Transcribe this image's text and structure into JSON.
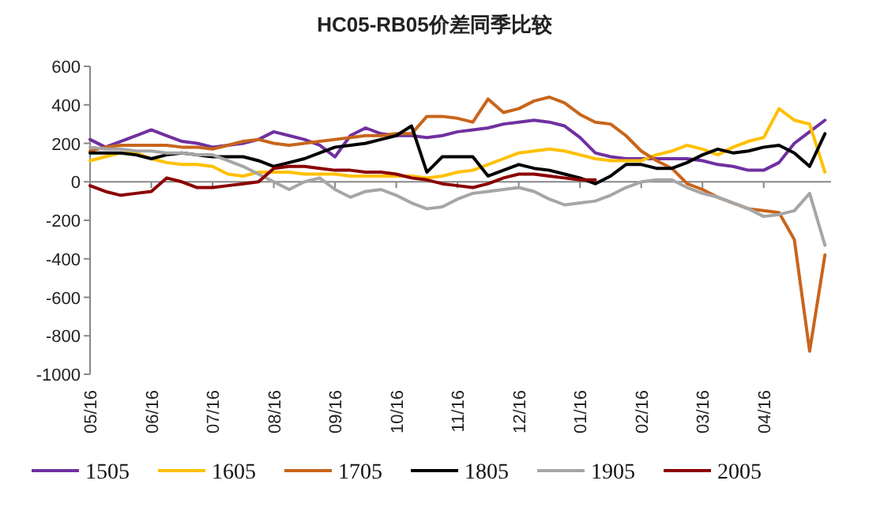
{
  "chart_data": {
    "type": "line",
    "title": "HC05-RB05价差同季比较",
    "categories": [
      "05/16",
      null,
      null,
      null,
      "06/16",
      null,
      null,
      null,
      "07/16",
      null,
      null,
      null,
      "08/16",
      null,
      null,
      null,
      "09/16",
      null,
      null,
      null,
      "10/16",
      null,
      null,
      null,
      "11/16",
      null,
      null,
      null,
      "12/16",
      null,
      null,
      null,
      "01/16",
      null,
      null,
      null,
      "02/16",
      null,
      null,
      null,
      "03/16",
      null,
      null,
      null,
      "04/16",
      null,
      null,
      null,
      null
    ],
    "ylim": [
      -1000,
      600
    ],
    "yticks": [
      -1000,
      -800,
      -600,
      -400,
      -200,
      0,
      200,
      400,
      600
    ],
    "legend": "bottom",
    "marker": "none",
    "line_style": "solid",
    "series": [
      {
        "name": "1505",
        "color": "#7030a0",
        "values": [
          220,
          180,
          210,
          240,
          270,
          240,
          210,
          200,
          180,
          190,
          200,
          220,
          260,
          240,
          220,
          190,
          130,
          240,
          280,
          250,
          240,
          240,
          230,
          240,
          260,
          270,
          280,
          300,
          310,
          320,
          310,
          290,
          230,
          150,
          130,
          120,
          120,
          120,
          120,
          120,
          110,
          90,
          80,
          60,
          60,
          100,
          200,
          260,
          320
        ]
      },
      {
        "name": "1605",
        "color": "#ffc000",
        "values": [
          110,
          130,
          150,
          150,
          120,
          100,
          90,
          90,
          80,
          40,
          30,
          50,
          50,
          50,
          40,
          40,
          40,
          30,
          30,
          30,
          30,
          30,
          20,
          30,
          50,
          60,
          90,
          120,
          150,
          160,
          170,
          160,
          140,
          120,
          110,
          110,
          110,
          140,
          160,
          190,
          170,
          140,
          180,
          210,
          230,
          380,
          320,
          300,
          50
        ]
      },
      {
        "name": "1705",
        "color": "#c8651b",
        "values": [
          160,
          180,
          190,
          190,
          190,
          190,
          180,
          180,
          170,
          190,
          210,
          220,
          200,
          190,
          200,
          210,
          220,
          230,
          240,
          240,
          250,
          250,
          340,
          340,
          330,
          310,
          430,
          360,
          380,
          420,
          440,
          410,
          350,
          310,
          300,
          240,
          160,
          110,
          70,
          -10,
          -40,
          -80,
          -110,
          -140,
          -150,
          -160,
          -300,
          -880,
          -380
        ]
      },
      {
        "name": "1805",
        "color": "#000000",
        "values": [
          150,
          150,
          150,
          140,
          120,
          140,
          150,
          140,
          130,
          130,
          130,
          110,
          80,
          100,
          120,
          150,
          180,
          190,
          200,
          220,
          240,
          290,
          50,
          130,
          130,
          130,
          30,
          60,
          90,
          70,
          60,
          40,
          20,
          -10,
          30,
          90,
          90,
          70,
          70,
          100,
          140,
          170,
          150,
          160,
          180,
          190,
          150,
          80,
          250
        ]
      },
      {
        "name": "1905",
        "color": "#a6a6a6",
        "values": [
          180,
          170,
          170,
          160,
          160,
          150,
          150,
          140,
          140,
          110,
          80,
          40,
          0,
          -40,
          0,
          20,
          -40,
          -80,
          -50,
          -40,
          -70,
          -110,
          -140,
          -130,
          -90,
          -60,
          -50,
          -40,
          -30,
          -50,
          -90,
          -120,
          -110,
          -100,
          -70,
          -30,
          0,
          10,
          10,
          -30,
          -60,
          -80,
          -110,
          -140,
          -180,
          -170,
          -150,
          -60,
          -330
        ]
      },
      {
        "name": "2005",
        "color": "#8b0000",
        "values": [
          -20,
          -50,
          -70,
          -60,
          -50,
          20,
          0,
          -30,
          -30,
          -20,
          -10,
          0,
          70,
          80,
          80,
          70,
          60,
          60,
          50,
          50,
          40,
          20,
          10,
          -10,
          -20,
          -30,
          -10,
          20,
          40,
          40,
          30,
          20,
          10,
          10,
          null,
          null,
          null,
          null,
          null,
          null,
          null,
          null,
          null,
          null,
          null,
          null,
          null,
          null,
          null
        ]
      }
    ]
  }
}
